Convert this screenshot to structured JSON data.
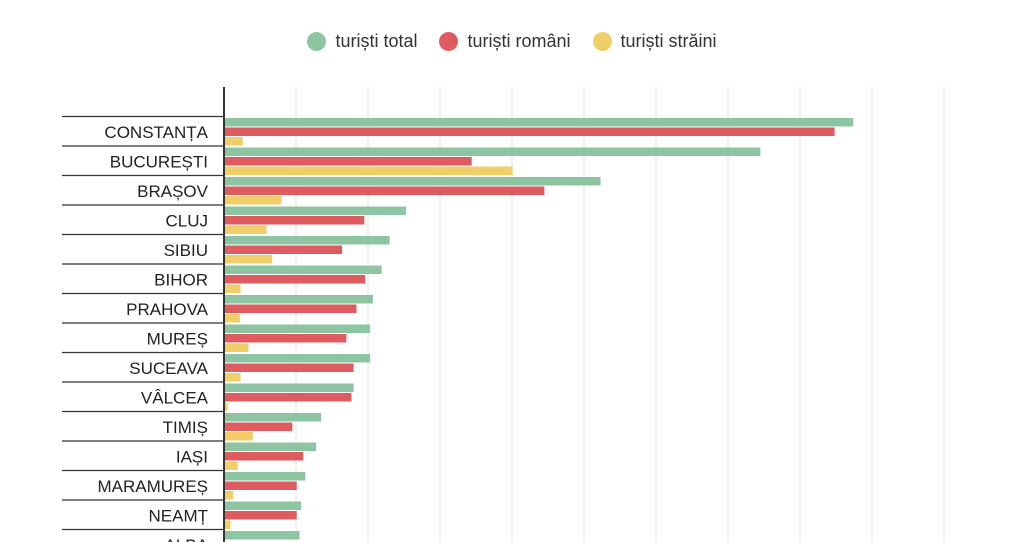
{
  "chart_data": {
    "type": "bar",
    "orientation": "horizontal",
    "title": "",
    "xlabel": "",
    "ylabel": "",
    "grid": true,
    "legend_position": "top-center",
    "xlim": [
      0,
      1000
    ],
    "categories": [
      "CONSTANȚA",
      "BUCUREȘTI",
      "BRAȘOV",
      "CLUJ",
      "SIBIU",
      "BIHOR",
      "PRAHOVA",
      "MUREȘ",
      "SUCEAVA",
      "VÂLCEA",
      "TIMIȘ",
      "IAȘI",
      "MARAMUREȘ",
      "NEAMȚ",
      "ALBA"
    ],
    "series": [
      {
        "name": "turiști total",
        "color": "#8dc5a3",
        "values": [
          874,
          745,
          523,
          253,
          230,
          219,
          207,
          203,
          203,
          180,
          135,
          128,
          113,
          107,
          105
        ]
      },
      {
        "name": "turiști români",
        "color": "#de5b5f",
        "values": [
          848,
          344,
          445,
          195,
          164,
          196,
          184,
          170,
          180,
          177,
          95,
          110,
          101,
          101,
          0
        ]
      },
      {
        "name": "turiști străini",
        "color": "#f0cf6a",
        "values": [
          26,
          401,
          80,
          59,
          67,
          23,
          22,
          34,
          23,
          5,
          40,
          19,
          13,
          9,
          0
        ]
      }
    ]
  }
}
